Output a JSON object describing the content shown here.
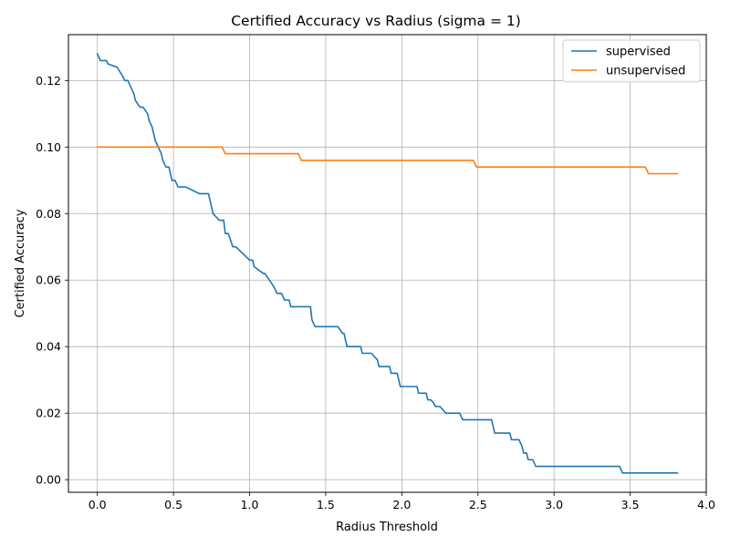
{
  "chart_data": {
    "type": "line",
    "title": "Certified Accuracy vs Radius (sigma = 1)",
    "xlabel": "Radius Threshold",
    "ylabel": "Certified Accuracy",
    "xlim": [
      -0.19,
      4.0
    ],
    "ylim": [
      -0.0038,
      0.1338
    ],
    "xticks": [
      0.0,
      0.5,
      1.0,
      1.5,
      2.0,
      2.5,
      3.0,
      3.5,
      4.0
    ],
    "xtick_labels": [
      "0.0",
      "0.5",
      "1.0",
      "1.5",
      "2.0",
      "2.5",
      "3.0",
      "3.5",
      "4.0"
    ],
    "yticks": [
      0.0,
      0.02,
      0.04,
      0.06,
      0.08,
      0.1,
      0.12
    ],
    "ytick_labels": [
      "0.00",
      "0.02",
      "0.04",
      "0.06",
      "0.08",
      "0.10",
      "0.12"
    ],
    "grid": true,
    "legend_position": "top-right",
    "series": [
      {
        "name": "supervised",
        "color": "#1f77b4",
        "x": [
          0.0,
          0.01,
          0.02,
          0.06,
          0.07,
          0.13,
          0.17,
          0.18,
          0.2,
          0.23,
          0.24,
          0.25,
          0.28,
          0.3,
          0.33,
          0.34,
          0.36,
          0.37,
          0.38,
          0.4,
          0.41,
          0.42,
          0.43,
          0.44,
          0.45,
          0.47,
          0.49,
          0.51,
          0.53,
          0.58,
          0.67,
          0.73,
          0.76,
          0.8,
          0.83,
          0.84,
          0.86,
          0.89,
          0.91,
          1.0,
          1.02,
          1.03,
          1.09,
          1.1,
          1.16,
          1.18,
          1.21,
          1.23,
          1.26,
          1.27,
          1.35,
          1.4,
          1.41,
          1.42,
          1.43,
          1.57,
          1.58,
          1.61,
          1.62,
          1.63,
          1.64,
          1.65,
          1.73,
          1.74,
          1.8,
          1.84,
          1.85,
          1.92,
          1.93,
          1.97,
          1.98,
          1.99,
          2.01,
          2.1,
          2.11,
          2.13,
          2.16,
          2.17,
          2.19,
          2.21,
          2.22,
          2.23,
          2.25,
          2.29,
          2.3,
          2.38,
          2.39,
          2.4,
          2.59,
          2.6,
          2.61,
          2.71,
          2.72,
          2.77,
          2.79,
          2.8,
          2.82,
          2.83,
          2.86,
          2.87,
          2.88,
          2.89,
          3.42,
          3.43,
          3.44,
          3.45,
          3.81
        ],
        "y": [
          0.128,
          0.127,
          0.126,
          0.126,
          0.125,
          0.124,
          0.121,
          0.12,
          0.12,
          0.117,
          0.116,
          0.114,
          0.112,
          0.112,
          0.11,
          0.108,
          0.106,
          0.104,
          0.102,
          0.1,
          0.099,
          0.098,
          0.096,
          0.095,
          0.094,
          0.094,
          0.09,
          0.09,
          0.088,
          0.088,
          0.086,
          0.086,
          0.08,
          0.078,
          0.078,
          0.074,
          0.074,
          0.07,
          0.07,
          0.066,
          0.066,
          0.064,
          0.062,
          0.062,
          0.058,
          0.056,
          0.056,
          0.054,
          0.054,
          0.052,
          0.052,
          0.052,
          0.048,
          0.047,
          0.046,
          0.046,
          0.046,
          0.044,
          0.044,
          0.042,
          0.04,
          0.04,
          0.04,
          0.038,
          0.038,
          0.036,
          0.034,
          0.034,
          0.032,
          0.032,
          0.03,
          0.028,
          0.028,
          0.028,
          0.026,
          0.026,
          0.026,
          0.024,
          0.024,
          0.023,
          0.022,
          0.022,
          0.022,
          0.02,
          0.02,
          0.02,
          0.019,
          0.018,
          0.018,
          0.016,
          0.014,
          0.014,
          0.012,
          0.012,
          0.01,
          0.008,
          0.008,
          0.006,
          0.006,
          0.005,
          0.004,
          0.004,
          0.004,
          0.004,
          0.003,
          0.002,
          0.002
        ]
      },
      {
        "name": "unsupervised",
        "color": "#ff7f0e",
        "x": [
          0.0,
          0.82,
          0.84,
          1.32,
          1.34,
          2.47,
          2.49,
          3.6,
          3.62,
          3.81
        ],
        "y": [
          0.1,
          0.1,
          0.098,
          0.098,
          0.096,
          0.096,
          0.094,
          0.094,
          0.092,
          0.092
        ]
      }
    ]
  }
}
